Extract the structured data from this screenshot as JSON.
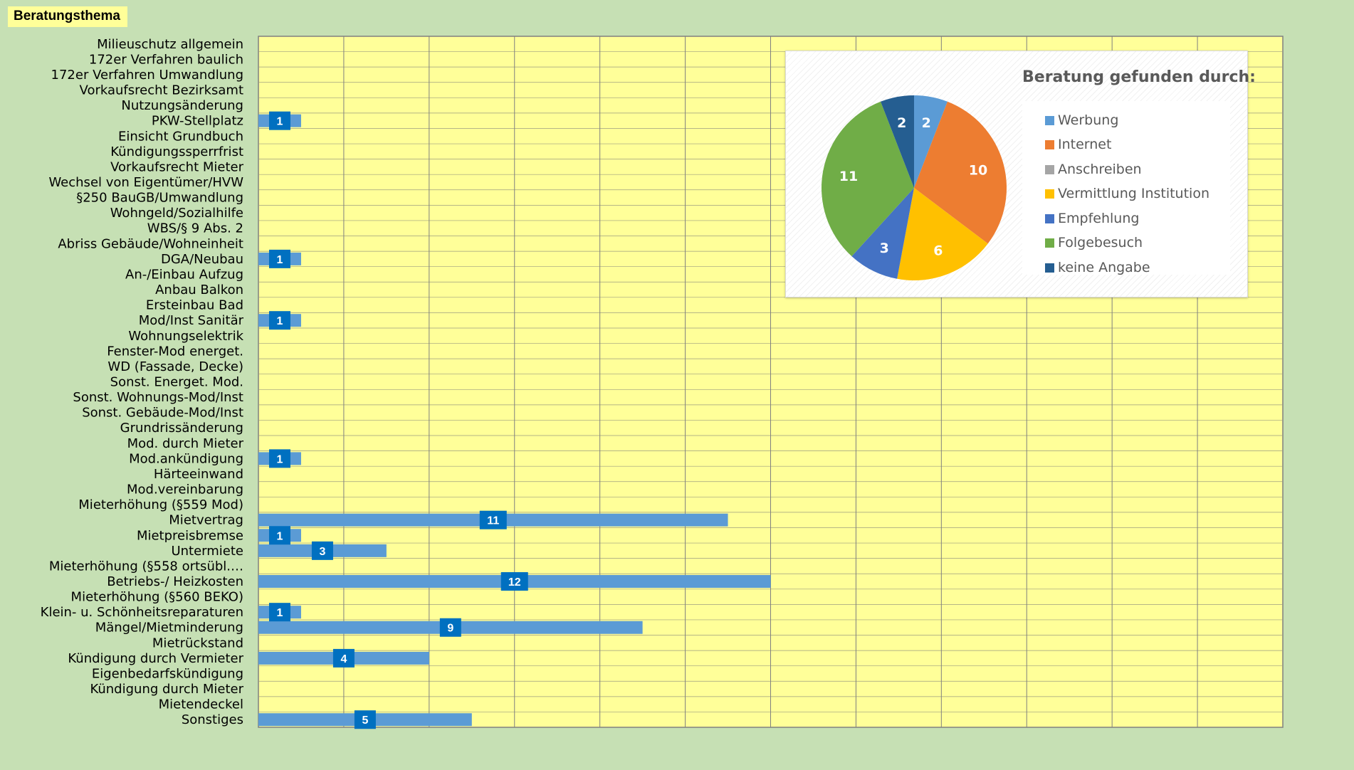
{
  "header": {
    "title": "Beratungsthema"
  },
  "chart_data": [
    {
      "type": "bar",
      "orientation": "horizontal",
      "categories": [
        "Milieuschutz allgemein",
        "172er Verfahren baulich",
        "172er Verfahren Umwandlung",
        "Vorkaufsrecht Bezirksamt",
        "Nutzungsänderung",
        "PKW-Stellplatz",
        "Einsicht Grundbuch",
        "Kündigungssperrfrist",
        "Vorkaufsrecht Mieter",
        "Wechsel von Eigentümer/HVW",
        "§250 BauGB/Umwandlung",
        "Wohngeld/Sozialhilfe",
        "WBS/§ 9 Abs. 2",
        "Abriss Gebäude/Wohneinheit",
        "DGA/Neubau",
        "An-/Einbau Aufzug",
        "Anbau Balkon",
        "Ersteinbau Bad",
        "Mod/Inst Sanitär",
        "Wohnungselektrik",
        "Fenster-Mod energet.",
        "WD (Fassade, Decke)",
        "Sonst. Energet. Mod.",
        "Sonst. Wohnungs-Mod/Inst",
        "Sonst. Gebäude-Mod/Inst",
        "Grundrissänderung",
        "Mod. durch Mieter",
        "Mod.ankündigung",
        "Härteeinwand",
        "Mod.vereinbarung",
        "Mieterhöhung (§559 Mod)",
        "Mietvertrag",
        "Mietpreisbremse",
        "Untermiete",
        "Mieterhöhung (§558 ortsübl.…",
        "Betriebs-/ Heizkosten",
        "Mieterhöhung (§560 BEKO)",
        "Klein- u. Schönheitsreparaturen",
        "Mängel/Mietminderung",
        "Mietrückstand",
        "Kündigung durch Vermieter",
        "Eigenbedarfskündigung",
        "Kündigung durch Mieter",
        "Mietendeckel",
        "Sonstiges"
      ],
      "values": [
        0,
        0,
        0,
        0,
        0,
        1,
        0,
        0,
        0,
        0,
        0,
        0,
        0,
        0,
        1,
        0,
        0,
        0,
        1,
        0,
        0,
        0,
        0,
        0,
        0,
        0,
        0,
        1,
        0,
        0,
        0,
        11,
        1,
        3,
        0,
        12,
        0,
        1,
        9,
        0,
        4,
        0,
        0,
        0,
        5
      ],
      "xlim": [
        0,
        24
      ],
      "grid": true,
      "bar_color": "#5b9bd5",
      "label_color": "#0070c0",
      "plot_bg": "#ffff99"
    },
    {
      "type": "pie",
      "title": "Beratung gefunden durch:",
      "legend_position": "right",
      "slices": [
        {
          "name": "Werbung",
          "value": 2,
          "color": "#5b9bd5"
        },
        {
          "name": "Internet",
          "value": 10,
          "color": "#ed7d31"
        },
        {
          "name": "Anschreiben",
          "value": 0,
          "color": "#a5a5a5"
        },
        {
          "name": "Vermittlung Institution",
          "value": 6,
          "color": "#ffc000"
        },
        {
          "name": "Empfehlung",
          "value": 3,
          "color": "#4472c4"
        },
        {
          "name": "Folgebesuch",
          "value": 11,
          "color": "#70ad47"
        },
        {
          "name": "keine Angabe",
          "value": 2,
          "color": "#255e91"
        }
      ]
    }
  ]
}
